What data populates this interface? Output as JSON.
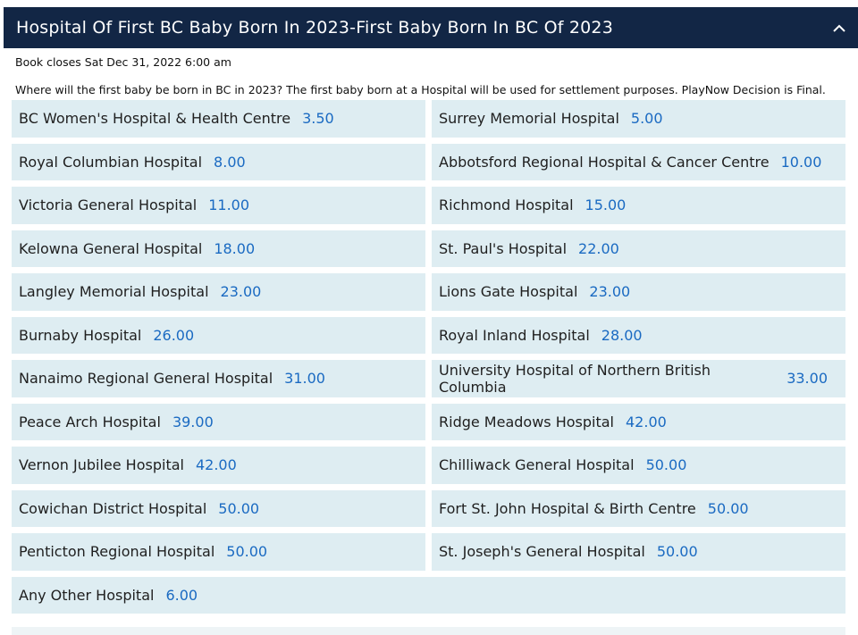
{
  "market": {
    "title": "Hospital Of First BC Baby Born In 2023-First Baby Born In BC Of 2023",
    "book_closes": "Book closes Sat Dec 31, 2022 6:00 am",
    "description": "Where will the first baby be born in BC in 2023? The first baby born at a Hospital will be used for settlement purposes. PlayNow Decision is Final.",
    "collapse_icon": "chevron-up-icon",
    "colors": {
      "header_bg": "#122645",
      "selection_bg": "#deedf2",
      "odds": "#1a6ac2"
    }
  },
  "selections": [
    {
      "name": "BC Women's Hospital & Health Centre",
      "odds": "3.50"
    },
    {
      "name": "Surrey Memorial Hospital",
      "odds": "5.00"
    },
    {
      "name": "Royal Columbian Hospital",
      "odds": "8.00"
    },
    {
      "name": "Abbotsford Regional Hospital & Cancer Centre",
      "odds": "10.00"
    },
    {
      "name": "Victoria General Hospital",
      "odds": "11.00"
    },
    {
      "name": "Richmond Hospital",
      "odds": "15.00"
    },
    {
      "name": "Kelowna General Hospital",
      "odds": "18.00"
    },
    {
      "name": "St. Paul's Hospital",
      "odds": "22.00"
    },
    {
      "name": "Langley Memorial Hospital",
      "odds": "23.00"
    },
    {
      "name": "Lions Gate Hospital",
      "odds": "23.00"
    },
    {
      "name": "Burnaby Hospital",
      "odds": "26.00"
    },
    {
      "name": "Royal Inland Hospital",
      "odds": "28.00"
    },
    {
      "name": "Nanaimo Regional General Hospital",
      "odds": "31.00"
    },
    {
      "name": "University Hospital of Northern British Columbia",
      "odds": "33.00"
    },
    {
      "name": "Peace Arch Hospital",
      "odds": "39.00"
    },
    {
      "name": "Ridge Meadows Hospital",
      "odds": "42.00"
    },
    {
      "name": "Vernon Jubilee Hospital",
      "odds": "42.00"
    },
    {
      "name": "Chilliwack General Hospital",
      "odds": "50.00"
    },
    {
      "name": "Cowichan District Hospital",
      "odds": "50.00"
    },
    {
      "name": "Fort St. John Hospital & Birth Centre",
      "odds": "50.00"
    },
    {
      "name": "Penticton Regional Hospital",
      "odds": "50.00"
    },
    {
      "name": "St. Joseph's General Hospital",
      "odds": "50.00"
    },
    {
      "name": "Any Other Hospital",
      "odds": "6.00"
    }
  ]
}
